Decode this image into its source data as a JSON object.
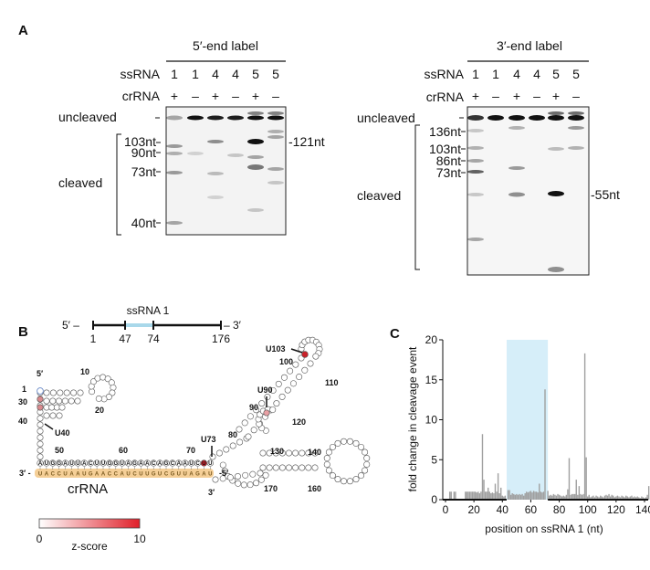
{
  "panel_a": {
    "label": "A",
    "left_gel": {
      "title": "5′-end label",
      "row_ssrna_label": "ssRNA",
      "ssrna": [
        "1",
        "1",
        "4",
        "4",
        "5",
        "5"
      ],
      "row_crrna_label": "crRNA",
      "crrna": [
        "+",
        "–",
        "+",
        "–",
        "+",
        "–"
      ],
      "uncleaved": "uncleaved",
      "cleaved": "cleaved",
      "markers": [
        "103nt",
        "90nt",
        "73nt",
        "40nt"
      ],
      "product": "-121nt"
    },
    "right_gel": {
      "title": "3′-end label",
      "row_ssrna_label": "ssRNA",
      "ssrna": [
        "1",
        "1",
        "4",
        "4",
        "5",
        "5"
      ],
      "row_crrna_label": "crRNA",
      "crrna": [
        "+",
        "–",
        "+",
        "–",
        "+",
        "–"
      ],
      "uncleaved": "uncleaved",
      "cleaved": "cleaved",
      "markers": [
        "136nt",
        "103nt",
        "86nt",
        "73nt"
      ],
      "product": "-55nt"
    }
  },
  "panel_b": {
    "label": "B",
    "map": {
      "title": "ssRNA 1",
      "five": "5′ –",
      "three": "– 3′",
      "ticks": [
        "1",
        "47",
        "74",
        "176"
      ]
    },
    "target_seq": [
      "A",
      "U",
      "G",
      "G",
      "A",
      "U",
      "U",
      "A",
      "C",
      "U",
      "U",
      "G",
      "G",
      "U",
      "A",
      "G",
      "A",
      "A",
      "C",
      "A",
      "G",
      "C",
      "A",
      "A",
      "U",
      "C",
      "U",
      "U"
    ],
    "crrna_seq": [
      "U",
      "A",
      "C",
      "C",
      "U",
      "A",
      "A",
      "U",
      "G",
      "A",
      "A",
      "C",
      "C",
      "A",
      "U",
      "C",
      "U",
      "U",
      "G",
      "U",
      "C",
      "G",
      "U",
      "U",
      "A",
      "G",
      "A",
      "U"
    ],
    "crrna_three": "3′ -",
    "crrna_five": "-5′",
    "crrna_label": "crRNA",
    "position_labels": [
      "1",
      "5′",
      "10",
      "20",
      "30",
      "40",
      "50",
      "60",
      "70",
      "80",
      "90",
      "100",
      "110",
      "120",
      "130",
      "140",
      "160",
      "170",
      "3′"
    ],
    "sites": [
      "U40",
      "U73",
      "U90",
      "U103"
    ],
    "scale": {
      "min": "0",
      "max": "10",
      "label": "z-score",
      "colors": [
        "#ffffff",
        "#e0202a"
      ]
    },
    "colors": {
      "crrna": "#f5cf97",
      "target_region": "#a9d8ea",
      "high": "#c8222a"
    }
  },
  "panel_c": {
    "label": "C"
  },
  "chart_data": {
    "type": "bar",
    "xlabel": "position on ssRNA 1 (nt)",
    "ylabel": "fold change in cleavage event",
    "xlim": [
      0,
      145
    ],
    "ylim": [
      0,
      20
    ],
    "xticks": [
      "0",
      "20",
      "40",
      "60",
      "80",
      "100",
      "120",
      "140"
    ],
    "yticks": [
      "0",
      "5",
      "10",
      "15",
      "20"
    ],
    "highlight_range": [
      43,
      72
    ],
    "highlight_color": "#d6eef9",
    "bar_color": "#a0a0a0",
    "x": [
      3,
      4,
      6,
      7,
      14,
      15,
      16,
      17,
      18,
      19,
      20,
      21,
      22,
      23,
      24,
      25,
      26,
      27,
      28,
      29,
      30,
      31,
      32,
      33,
      34,
      35,
      36,
      37,
      38,
      39,
      40,
      41,
      42,
      44,
      45,
      46,
      47,
      48,
      49,
      50,
      51,
      52,
      53,
      54,
      55,
      56,
      57,
      58,
      59,
      60,
      61,
      62,
      63,
      64,
      65,
      66,
      67,
      68,
      69,
      70,
      72,
      73,
      74,
      75,
      76,
      77,
      78,
      79,
      80,
      81,
      82,
      83,
      84,
      85,
      86,
      87,
      88,
      89,
      90,
      91,
      92,
      93,
      94,
      95,
      96,
      97,
      98,
      99,
      100,
      101,
      102,
      103,
      104,
      105,
      106,
      107,
      108,
      109,
      110,
      111,
      112,
      113,
      114,
      115,
      116,
      117,
      118,
      119,
      120,
      121,
      122,
      123,
      124,
      125,
      126,
      127,
      128,
      129,
      130,
      131,
      132,
      133,
      134,
      135,
      136,
      137,
      138,
      139,
      140,
      141,
      142,
      143
    ],
    "values": [
      1,
      1,
      1,
      1,
      1,
      1,
      1,
      1,
      1,
      1,
      1,
      1,
      0.9,
      1,
      0.8,
      1,
      8.2,
      2.5,
      1,
      1,
      1.5,
      1,
      0.8,
      0.9,
      0.8,
      2,
      1,
      3.3,
      0.8,
      1.5,
      0.5,
      0.4,
      0.5,
      1.2,
      1.2,
      0.6,
      0.8,
      0.7,
      0.6,
      0.7,
      0.6,
      0.7,
      0.6,
      0.7,
      0.5,
      0.8,
      1,
      0.9,
      1,
      1.1,
      0.9,
      1.1,
      1,
      1,
      0.9,
      2,
      1,
      0.9,
      1,
      13.8,
      1.1,
      0.5,
      0.6,
      0.5,
      0.7,
      0.6,
      0.5,
      0.7,
      0.6,
      0.5,
      0.4,
      0.5,
      0.4,
      0.6,
      1.3,
      5.2,
      0.6,
      0.7,
      0.7,
      0.7,
      2.5,
      0.6,
      1.7,
      0.7,
      0.6,
      0.7,
      18.3,
      5.3,
      0.4,
      0.6,
      0.3,
      0.4,
      0.5,
      0.3,
      0.5,
      0.4,
      0.3,
      0.5,
      0.4,
      0.3,
      0.5,
      0.6,
      0.5,
      0.7,
      0.4,
      0.6,
      0.5,
      0.3,
      0.4,
      0.5,
      0.4,
      0.3,
      0.5,
      0.4,
      0.3,
      0.5,
      0.4,
      0.3,
      0.4,
      0.5,
      0.3,
      0.4,
      0.3,
      0.4,
      0.3,
      0.2,
      0.4,
      0.3,
      0.2,
      0.3,
      0.6,
      1.7
    ]
  }
}
